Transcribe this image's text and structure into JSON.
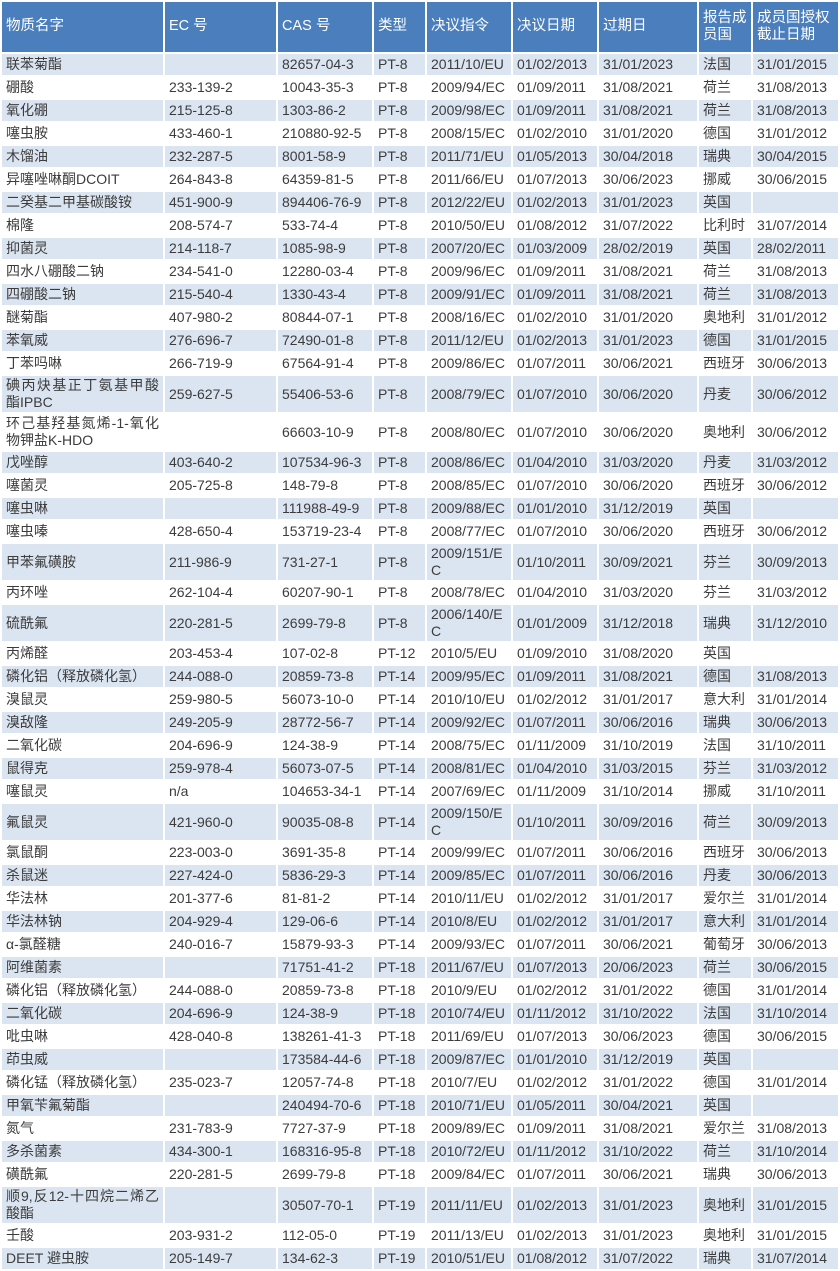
{
  "colors": {
    "header_bg": "#4a7ebc",
    "header_text": "#ffffff",
    "row_alt_bg": "#dbe5f1",
    "row_bg": "#ffffff",
    "cell_text": "#3c3c3c"
  },
  "table": {
    "columns": [
      {
        "key": "substance-name",
        "label": "物质名字"
      },
      {
        "key": "ec-number",
        "label": "EC 号"
      },
      {
        "key": "cas-number",
        "label": "CAS 号"
      },
      {
        "key": "type",
        "label": "类型"
      },
      {
        "key": "decision-directive",
        "label": "决议指令"
      },
      {
        "key": "decision-date",
        "label": "决议日期"
      },
      {
        "key": "expiry-date",
        "label": "过期日"
      },
      {
        "key": "rapporteur-member-state",
        "label": "报告成员国"
      },
      {
        "key": "member-state-authorization-deadline",
        "label": "成员国授权截止日期"
      }
    ],
    "rows": [
      [
        "联苯菊酯",
        "",
        "82657-04-3",
        "PT-8",
        "2011/10/EU",
        "01/02/2013",
        "31/01/2023",
        "法国",
        "31/01/2015"
      ],
      [
        "硼酸",
        "233-139-2",
        "10043-35-3",
        "PT-8",
        "2009/94/EC",
        "01/09/2011",
        "31/08/2021",
        "荷兰",
        "31/08/2013"
      ],
      [
        "氧化硼",
        "215-125-8",
        "1303-86-2",
        "PT-8",
        "2009/98/EC",
        "01/09/2011",
        "31/08/2021",
        "荷兰",
        "31/08/2013"
      ],
      [
        "噻虫胺",
        "433-460-1",
        "210880-92-5",
        "PT-8",
        "2008/15/EC",
        "01/02/2010",
        "31/01/2020",
        "德国",
        "31/01/2012"
      ],
      [
        "木馏油",
        "232-287-5",
        "8001-58-9",
        "PT-8",
        "2011/71/EU",
        "01/05/2013",
        "30/04/2018",
        "瑞典",
        "30/04/2015"
      ],
      [
        "异噻唑啉酮DCOIT",
        "264-843-8",
        "64359-81-5",
        "PT-8",
        "2011/66/EU",
        "01/07/2013",
        "30/06/2023",
        "挪威",
        "30/06/2015"
      ],
      [
        "二癸基二甲基碳酸铵",
        "451-900-9",
        "894406-76-9",
        "PT-8",
        "2012/22/EU",
        "01/02/2013",
        "31/01/2023",
        "英国",
        ""
      ],
      [
        "棉隆",
        "208-574-7",
        "533-74-4",
        "PT-8",
        "2010/50/EU",
        "01/08/2012",
        "31/07/2022",
        "比利时",
        "31/07/2014"
      ],
      [
        "抑菌灵",
        "214-118-7",
        "1085-98-9",
        "PT-8",
        "2007/20/EC",
        "01/03/2009",
        "28/02/2019",
        "英国",
        "28/02/2011"
      ],
      [
        "四水八硼酸二钠",
        "234-541-0",
        "12280-03-4",
        "PT-8",
        "2009/96/EC",
        "01/09/2011",
        "31/08/2021",
        "荷兰",
        "31/08/2013"
      ],
      [
        "四硼酸二钠",
        "215-540-4",
        "1330-43-4",
        "PT-8",
        "2009/91/EC",
        "01/09/2011",
        "31/08/2021",
        "荷兰",
        "31/08/2013"
      ],
      [
        "醚菊酯",
        "407-980-2",
        "80844-07-1",
        "PT-8",
        "2008/16/EC",
        "01/02/2010",
        "31/01/2020",
        "奥地利",
        "31/01/2012"
      ],
      [
        "苯氧威",
        "276-696-7",
        "72490-01-8",
        "PT-8",
        "2011/12/EU",
        "01/02/2013",
        "31/01/2023",
        "德国",
        "31/01/2015"
      ],
      [
        "丁苯吗啉",
        "266-719-9",
        "67564-91-4",
        "PT-8",
        "2009/86/EC",
        "01/07/2011",
        "30/06/2021",
        "西班牙",
        "30/06/2013"
      ],
      [
        "碘丙炔基正丁氨基甲酸酯IPBC",
        "259-627-5",
        "55406-53-6",
        "PT-8",
        "2008/79/EC",
        "01/07/2010",
        "30/06/2020",
        "丹麦",
        "30/06/2012"
      ],
      [
        "环己基羟基氮烯-1-氧化物钾盐K-HDO",
        "",
        "66603-10-9",
        "PT-8",
        "2008/80/EC",
        "01/07/2010",
        "30/06/2020",
        "奥地利",
        "30/06/2012"
      ],
      [
        "戊唑醇",
        "403-640-2",
        "107534-96-3",
        "PT-8",
        "2008/86/EC",
        "01/04/2010",
        "31/03/2020",
        "丹麦",
        "31/03/2012"
      ],
      [
        "噻菌灵",
        "205-725-8",
        "148-79-8",
        "PT-8",
        "2008/85/EC",
        "01/07/2010",
        "30/06/2020",
        "西班牙",
        "30/06/2012"
      ],
      [
        "噻虫啉",
        "",
        "111988-49-9",
        "PT-8",
        "2009/88/EC",
        "01/01/2010",
        "31/12/2019",
        "英国",
        ""
      ],
      [
        "噻虫嗪",
        "428-650-4",
        "153719-23-4",
        "PT-8",
        "2008/77/EC",
        "01/07/2010",
        "30/06/2020",
        "西班牙",
        "30/06/2012"
      ],
      [
        "甲苯氟磺胺",
        "211-986-9",
        "731-27-1",
        "PT-8",
        "2009/151/EC",
        "01/10/2011",
        "30/09/2021",
        "芬兰",
        "30/09/2013"
      ],
      [
        "丙环唑",
        "262-104-4",
        "60207-90-1",
        "PT-8",
        "2008/78/EC",
        "01/04/2010",
        "31/03/2020",
        "芬兰",
        "31/03/2012"
      ],
      [
        "硫酰氟",
        "220-281-5",
        "2699-79-8",
        "PT-8",
        "2006/140/EC",
        "01/01/2009",
        "31/12/2018",
        "瑞典",
        "31/12/2010"
      ],
      [
        "丙烯醛",
        "203-453-4",
        "107-02-8",
        "PT-12",
        "2010/5/EU",
        "01/09/2010",
        "31/08/2020",
        "英国",
        ""
      ],
      [
        "磷化铝（释放磷化氢）",
        "244-088-0",
        "20859-73-8",
        "PT-14",
        "2009/95/EC",
        "01/09/2011",
        "31/08/2021",
        "德国",
        "31/08/2013"
      ],
      [
        "溴鼠灵",
        "259-980-5",
        "56073-10-0",
        "PT-14",
        "2010/10/EU",
        "01/02/2012",
        "31/01/2017",
        "意大利",
        "31/01/2014"
      ],
      [
        "溴敌隆",
        "249-205-9",
        "28772-56-7",
        "PT-14",
        "2009/92/EC",
        "01/07/2011",
        "30/06/2016",
        "瑞典",
        "30/06/2013"
      ],
      [
        "二氧化碳",
        "204-696-9",
        "124-38-9",
        "PT-14",
        "2008/75/EC",
        "01/11/2009",
        "31/10/2019",
        "法国",
        "31/10/2011"
      ],
      [
        "鼠得克",
        "259-978-4",
        "56073-07-5",
        "PT-14",
        "2008/81/EC",
        "01/04/2010",
        "31/03/2015",
        "芬兰",
        "31/03/2012"
      ],
      [
        "噻鼠灵",
        "n/a",
        "104653-34-1",
        "PT-14",
        "2007/69/EC",
        "01/11/2009",
        "31/10/2014",
        "挪威",
        "31/10/2011"
      ],
      [
        "氟鼠灵",
        "421-960-0",
        "90035-08-8",
        "PT-14",
        "2009/150/EC",
        "01/10/2011",
        "30/09/2016",
        "荷兰",
        "30/09/2013"
      ],
      [
        "氯鼠酮",
        "223-003-0",
        "3691-35-8",
        "PT-14",
        "2009/99/EC",
        "01/07/2011",
        "30/06/2016",
        "西班牙",
        "30/06/2013"
      ],
      [
        "杀鼠迷",
        "227-424-0",
        "5836-29-3",
        "PT-14",
        "2009/85/EC",
        "01/07/2011",
        "30/06/2016",
        "丹麦",
        "30/06/2013"
      ],
      [
        "华法林",
        "201-377-6",
        "81-81-2",
        "PT-14",
        "2010/11/EU",
        "01/02/2012",
        "31/01/2017",
        "爱尔兰",
        "31/01/2014"
      ],
      [
        "华法林钠",
        "204-929-4",
        "129-06-6",
        "PT-14",
        "2010/8/EU",
        "01/02/2012",
        "31/01/2017",
        "意大利",
        "31/01/2014"
      ],
      [
        "α-氯醛糖",
        "240-016-7",
        "15879-93-3",
        "PT-14",
        "2009/93/EC",
        "01/07/2011",
        "30/06/2021",
        "葡萄牙",
        "30/06/2013"
      ],
      [
        "阿维菌素",
        "",
        "71751-41-2",
        "PT-18",
        "2011/67/EU",
        "01/07/2013",
        "20/06/2023",
        "荷兰",
        "30/06/2015"
      ],
      [
        "磷化铝（释放磷化氢）",
        "244-088-0",
        "20859-73-8",
        "PT-18",
        "2010/9/EU",
        "01/02/2012",
        "31/01/2022",
        "德国",
        "31/01/2014"
      ],
      [
        "二氧化碳",
        "204-696-9",
        "124-38-9",
        "PT-18",
        "2010/74/EU",
        "01/11/2012",
        "31/10/2022",
        "法国",
        "31/10/2014"
      ],
      [
        "吡虫啉",
        "428-040-8",
        "138261-41-3",
        "PT-18",
        "2011/69/EU",
        "01/07/2013",
        "30/06/2023",
        "德国",
        "30/06/2015"
      ],
      [
        "茚虫威",
        "",
        "173584-44-6",
        "PT-18",
        "2009/87/EC",
        "01/01/2010",
        "31/12/2019",
        "英国",
        ""
      ],
      [
        "磷化锰（释放磷化氢）",
        "235-023-7",
        "12057-74-8",
        "PT-18",
        "2010/7/EU",
        "01/02/2012",
        "31/01/2022",
        "德国",
        "31/01/2014"
      ],
      [
        "甲氧苄氟菊酯",
        "",
        "240494-70-6",
        "PT-18",
        "2010/71/EU",
        "01/05/2011",
        "30/04/2021",
        "英国",
        ""
      ],
      [
        "氮气",
        "231-783-9",
        "7727-37-9",
        "PT-18",
        "2009/89/EC",
        "01/09/2011",
        "31/08/2021",
        "爱尔兰",
        "31/08/2013"
      ],
      [
        "多杀菌素",
        "434-300-1",
        "168316-95-8",
        "PT-18",
        "2010/72/EU",
        "01/11/2012",
        "31/10/2022",
        "荷兰",
        "31/10/2014"
      ],
      [
        "磺酰氟",
        "220-281-5",
        "2699-79-8",
        "PT-18",
        "2009/84/EC",
        "01/07/2011",
        "30/06/2021",
        "瑞典",
        "30/06/2013"
      ],
      [
        "顺9,反12-十四烷二烯乙酸酯",
        "",
        "30507-70-1",
        "PT-19",
        "2011/11/EU",
        "01/02/2013",
        "31/01/2023",
        "奥地利",
        "31/01/2015"
      ],
      [
        "壬酸",
        "203-931-2",
        "112-05-0",
        "PT-19",
        "2011/13/EU",
        "01/02/2013",
        "31/01/2023",
        "奥地利",
        "31/01/2015"
      ],
      [
        "DEET 避虫胺",
        "205-149-7",
        "134-62-3",
        "PT-19",
        "2010/51/EU",
        "01/08/2012",
        "31/07/2022",
        "瑞典",
        "31/07/2014"
      ]
    ]
  }
}
